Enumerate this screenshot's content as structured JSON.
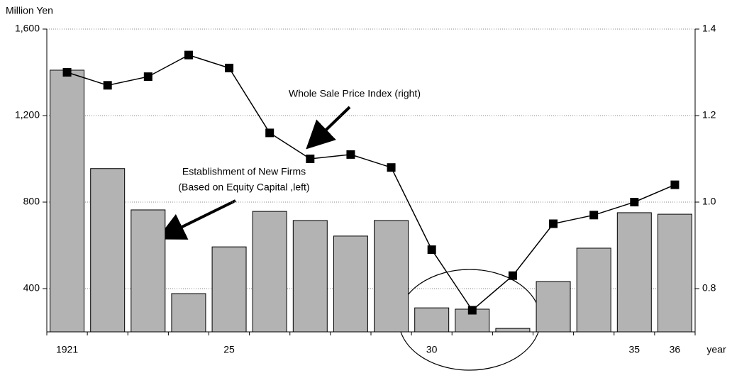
{
  "chart_data": {
    "type": "bar_line",
    "y_label": "Million Yen",
    "x_label": "year",
    "categories": [
      "1921",
      null,
      null,
      null,
      "25",
      null,
      null,
      null,
      null,
      "30",
      null,
      null,
      null,
      null,
      "35",
      "36"
    ],
    "series": [
      {
        "name": "Establishment of New Firms (Based on Equity Capital ,left)",
        "type": "bar",
        "axis": "y",
        "color": "#b3b3b3",
        "values": [
          1410,
          955,
          764,
          377,
          593,
          757,
          715,
          643,
          715,
          311,
          305,
          216,
          433,
          587,
          751,
          744
        ]
      },
      {
        "name": "Whole Sale Price Index (right)",
        "type": "line",
        "axis": "y2",
        "color": "#000000",
        "values": [
          1.3,
          1.27,
          1.29,
          1.34,
          1.31,
          1.16,
          1.1,
          1.11,
          1.08,
          0.89,
          0.75,
          0.83,
          0.95,
          0.97,
          1.0,
          1.04
        ]
      }
    ],
    "annotations": [
      "Whole Sale Price Index (right)",
      "Establishment of New Firms",
      "(Based on Equity Capital ,left)"
    ],
    "ylim": [
      200,
      1600
    ],
    "yticks": [
      400,
      800,
      {
        "value": 1200,
        "label": "1,200"
      },
      {
        "value": 1600,
        "label": "1,600"
      }
    ],
    "y2lim": [
      0.7,
      1.4
    ],
    "y2ticks": [
      0.8,
      {
        "value": 1.0,
        "label": "1.0"
      },
      1.2,
      1.4
    ],
    "grid": true
  }
}
